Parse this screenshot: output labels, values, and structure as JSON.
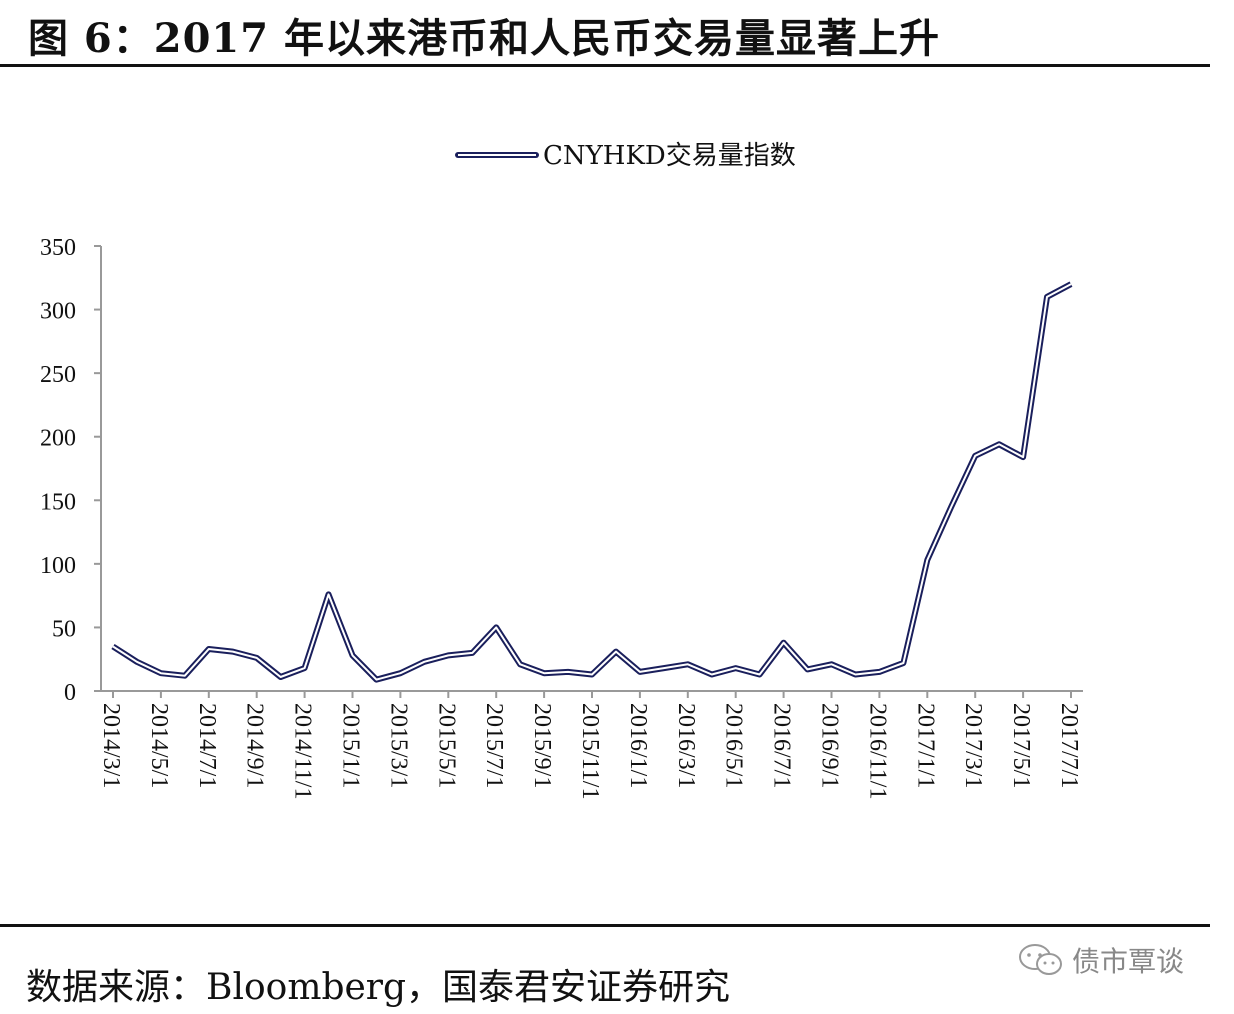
{
  "header": {
    "title": "图 6：2017 年以来港币和人民币交易量显著上升"
  },
  "footer": {
    "source": "数据来源：Bloomberg，国泰君安证券研究"
  },
  "watermark": {
    "text": "债市覃谈",
    "icon": "wechat-bubble-icon"
  },
  "chart_data": {
    "type": "line",
    "title": "",
    "xlabel": "",
    "ylabel": "",
    "ylim": [
      0,
      350
    ],
    "y_ticks": [
      0,
      50,
      100,
      150,
      200,
      250,
      300,
      350
    ],
    "x_tick_labels": [
      "2014/3/1",
      "2014/5/1",
      "2014/7/1",
      "2014/9/1",
      "2014/11/1",
      "2015/1/1",
      "2015/3/1",
      "2015/5/1",
      "2015/7/1",
      "2015/9/1",
      "2015/11/1",
      "2016/1/1",
      "2016/3/1",
      "2016/5/1",
      "2016/7/1",
      "2016/9/1",
      "2016/11/1",
      "2017/1/1",
      "2017/3/1",
      "2017/5/1",
      "2017/7/1"
    ],
    "grid": false,
    "legend_position": "top-center",
    "series": [
      {
        "name": "CNYHKD交易量指数",
        "color": "#1a1f5c",
        "x": [
          "2014/3/1",
          "2014/4/1",
          "2014/5/1",
          "2014/6/1",
          "2014/7/1",
          "2014/8/1",
          "2014/9/1",
          "2014/10/1",
          "2014/11/1",
          "2014/12/1",
          "2015/1/1",
          "2015/2/1",
          "2015/3/1",
          "2015/4/1",
          "2015/5/1",
          "2015/6/1",
          "2015/7/1",
          "2015/8/1",
          "2015/9/1",
          "2015/10/1",
          "2015/11/1",
          "2015/12/1",
          "2016/1/1",
          "2016/2/1",
          "2016/3/1",
          "2016/4/1",
          "2016/5/1",
          "2016/6/1",
          "2016/7/1",
          "2016/8/1",
          "2016/9/1",
          "2016/10/1",
          "2016/11/1",
          "2016/12/1",
          "2017/1/1",
          "2017/2/1",
          "2017/3/1",
          "2017/4/1",
          "2017/5/1",
          "2017/6/1",
          "2017/7/1"
        ],
        "values": [
          35,
          23,
          14,
          12,
          33,
          31,
          26,
          11,
          18,
          76,
          28,
          9,
          14,
          23,
          28,
          30,
          50,
          21,
          14,
          15,
          13,
          31,
          15,
          18,
          21,
          13,
          18,
          13,
          38,
          17,
          21,
          13,
          15,
          22,
          103,
          145,
          185,
          194,
          184,
          310,
          320
        ]
      }
    ]
  }
}
